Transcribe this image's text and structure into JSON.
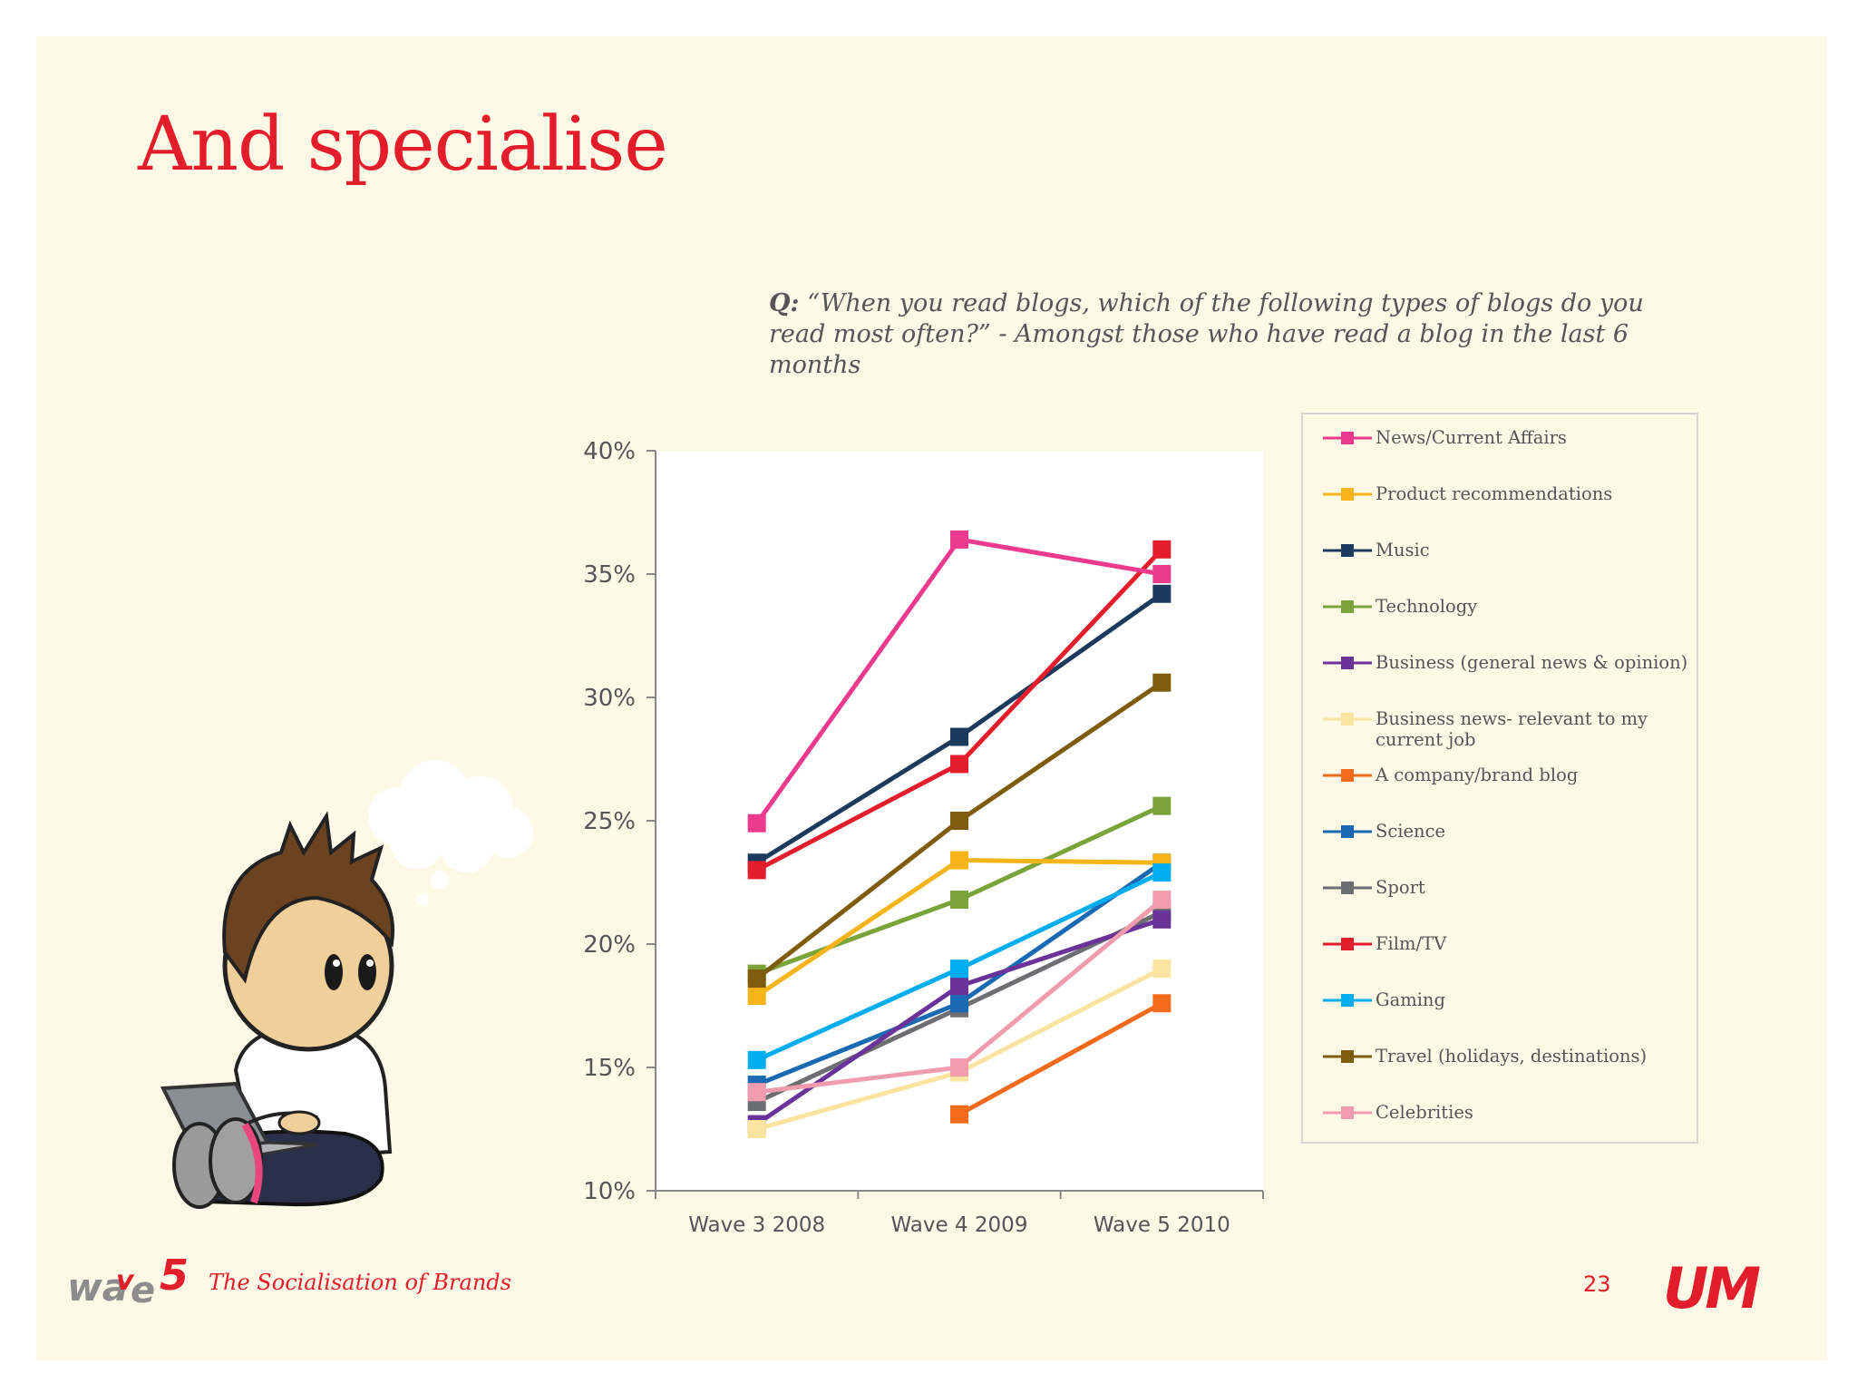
{
  "slide": {
    "title": "And specialise",
    "question_label": "Q:",
    "question_text": " “When you read blogs, which of the following types of blogs do you read most often?” - Amongst those who have read a blog in the last 6 months",
    "footer_text": "The Socialisation of Brands",
    "page_number": "23",
    "logo_left": "wave5-logo",
    "logo_right": "UM",
    "illustration": "character-with-laptop"
  },
  "chart_data": {
    "type": "line",
    "title": "",
    "xlabel": "",
    "ylabel": "",
    "x": [
      "Wave 3 2008",
      "Wave 4 2009",
      "Wave 5 2010"
    ],
    "ylim": [
      10,
      40
    ],
    "yticks": [
      10,
      15,
      20,
      25,
      30,
      35,
      40
    ],
    "ytick_labels": [
      "10%",
      "15%",
      "20%",
      "25%",
      "30%",
      "35%",
      "40%"
    ],
    "grid": false,
    "legend_position": "right",
    "series": [
      {
        "name": "News/Current Affairs",
        "color": "#ec3a8e",
        "values": [
          24.9,
          36.4,
          35.0
        ]
      },
      {
        "name": "Product recommendations",
        "color": "#f4b41a",
        "values": [
          17.9,
          23.4,
          23.3
        ]
      },
      {
        "name": "Music",
        "color": "#1c3a5e",
        "values": [
          23.3,
          28.4,
          34.2
        ]
      },
      {
        "name": "Technology",
        "color": "#7aa33a",
        "values": [
          18.8,
          21.8,
          25.6
        ]
      },
      {
        "name": "Business (general news & opinion)",
        "color": "#6a3399",
        "values": [
          12.7,
          18.3,
          21.0
        ]
      },
      {
        "name": "Business news- relevant to my current job",
        "color": "#fbe3a0",
        "values": [
          12.5,
          14.8,
          19.0
        ]
      },
      {
        "name": "A company/brand blog",
        "color": "#f26b1d",
        "values": [
          null,
          13.1,
          17.6
        ]
      },
      {
        "name": "Science",
        "color": "#1a6ab3",
        "values": [
          14.3,
          17.6,
          23.3
        ]
      },
      {
        "name": "Sport",
        "color": "#6d6e71",
        "values": [
          13.6,
          17.4,
          21.3
        ]
      },
      {
        "name": "Film/TV",
        "color": "#e31d2b",
        "values": [
          23.0,
          27.3,
          36.0
        ]
      },
      {
        "name": "Gaming",
        "color": "#00aeef",
        "values": [
          15.3,
          19.0,
          22.9
        ]
      },
      {
        "name": "Travel (holidays, destinations)",
        "color": "#7f5b0e",
        "values": [
          18.6,
          25.0,
          30.6
        ]
      },
      {
        "name": "Celebrities",
        "color": "#f19bae",
        "values": [
          14.0,
          15.0,
          21.8
        ]
      }
    ]
  }
}
